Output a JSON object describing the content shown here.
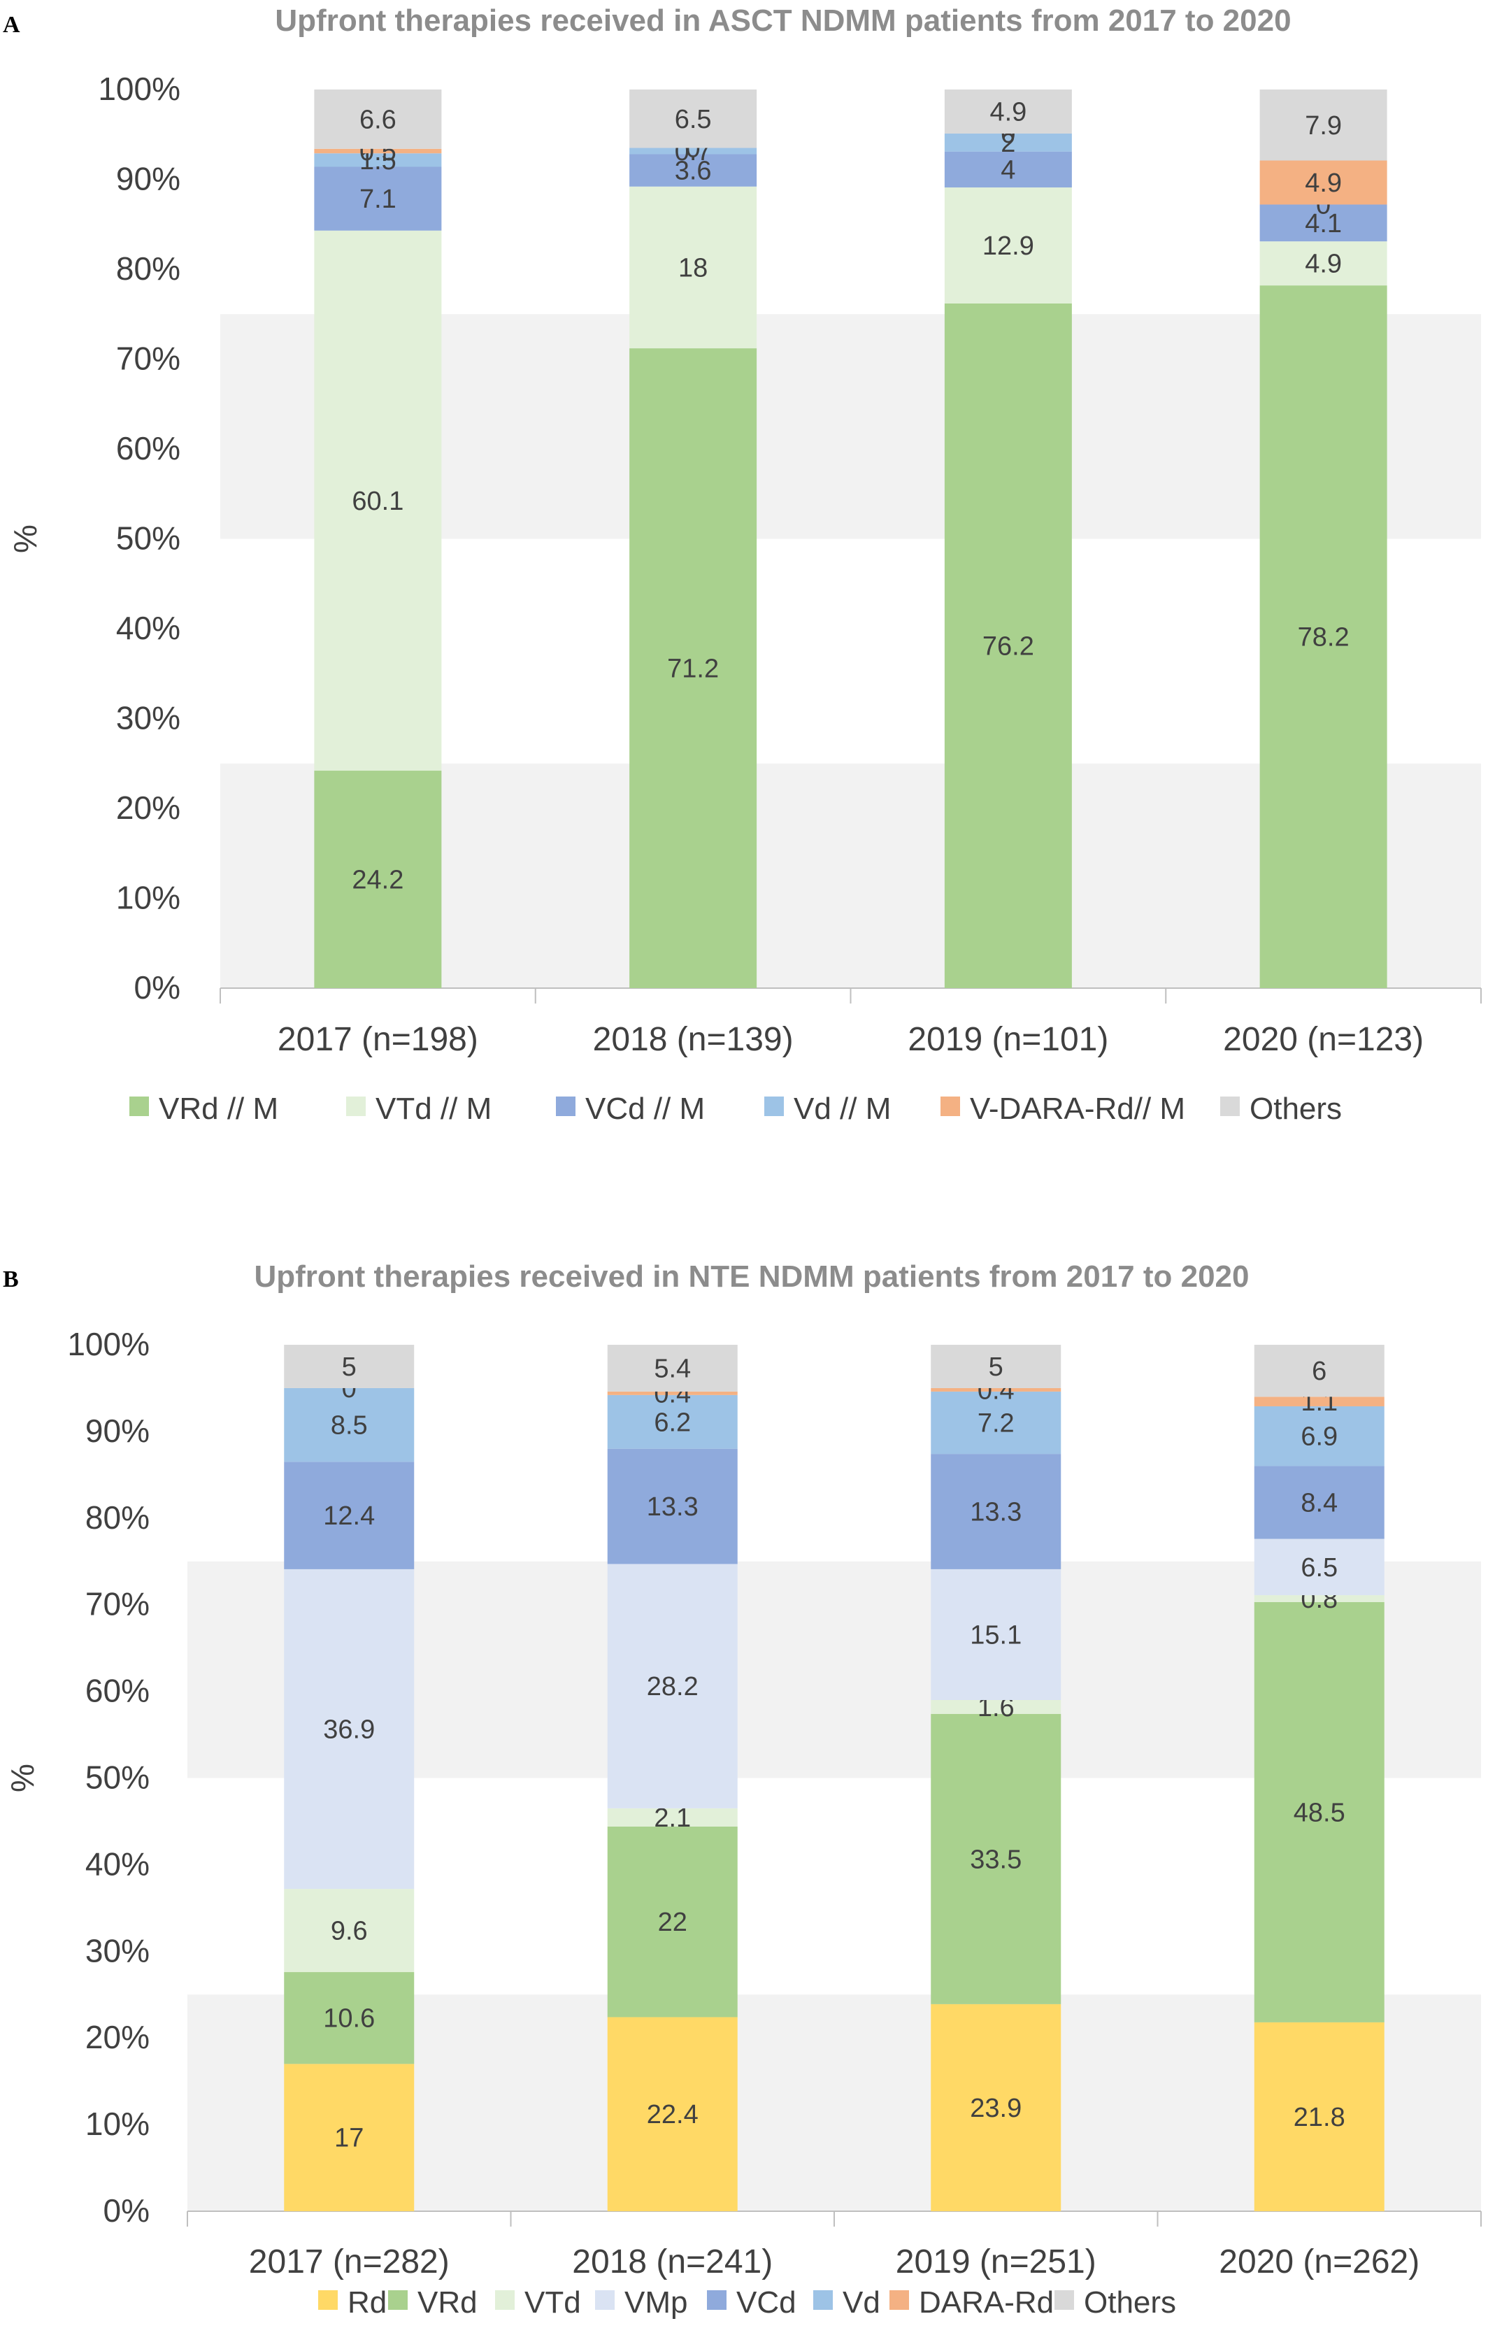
{
  "panel_labels": [
    "A",
    "B"
  ],
  "chart_data": [
    {
      "type": "bar",
      "stacked": true,
      "panel": "A",
      "title": "Upfront therapies received in ASCT NDMM patients from 2017 to 2020",
      "ylabel": "%",
      "ylim": [
        0,
        100
      ],
      "yticks": [
        "0%",
        "10%",
        "20%",
        "30%",
        "40%",
        "50%",
        "60%",
        "70%",
        "80%",
        "90%",
        "100%"
      ],
      "grid": false,
      "legend_position": "bottom",
      "categories": [
        "2017 (n=198)",
        "2018 (n=139)",
        "2019 (n=101)",
        "2020 (n=123)"
      ],
      "series": [
        {
          "name": "VRd // M",
          "color": "#a9d18e",
          "values": [
            24.2,
            71.2,
            76.2,
            78.2
          ]
        },
        {
          "name": "VTd // M",
          "color": "#e2f0d9",
          "values": [
            60.1,
            18,
            12.9,
            4.9
          ]
        },
        {
          "name": "VCd // M",
          "color": "#8faadc",
          "values": [
            7.1,
            3.6,
            4,
            4.1
          ]
        },
        {
          "name": "Vd // M",
          "color": "#9dc3e6",
          "values": [
            1.5,
            0.7,
            2,
            0
          ]
        },
        {
          "name": "V-DARA-Rd// M",
          "color": "#f4b183",
          "values": [
            0.5,
            0,
            0,
            4.9
          ]
        },
        {
          "name": "Others",
          "color": "#d9d9d9",
          "values": [
            6.6,
            6.5,
            4.9,
            7.9
          ]
        }
      ]
    },
    {
      "type": "bar",
      "stacked": true,
      "panel": "B",
      "title": "Upfront therapies received in NTE NDMM patients from 2017 to 2020",
      "ylabel": "%",
      "ylim": [
        0,
        100
      ],
      "yticks": [
        "0%",
        "10%",
        "20%",
        "30%",
        "40%",
        "50%",
        "60%",
        "70%",
        "80%",
        "90%",
        "100%"
      ],
      "grid": false,
      "legend_position": "bottom",
      "categories": [
        "2017 (n=282)",
        "2018 (n=241)",
        "2019 (n=251)",
        "2020 (n=262)"
      ],
      "series": [
        {
          "name": "Rd",
          "color": "#ffd966",
          "values": [
            17,
            22.4,
            23.9,
            21.8
          ]
        },
        {
          "name": "VRd",
          "color": "#a9d18e",
          "values": [
            10.6,
            22,
            33.5,
            48.5
          ]
        },
        {
          "name": "VTd",
          "color": "#e2f0d9",
          "values": [
            9.6,
            2.1,
            1.6,
            0.8
          ]
        },
        {
          "name": "VMp",
          "color": "#dae3f3",
          "values": [
            36.9,
            28.2,
            15.1,
            6.5
          ]
        },
        {
          "name": "VCd",
          "color": "#8faadc",
          "values": [
            12.4,
            13.3,
            13.3,
            8.4
          ]
        },
        {
          "name": "Vd",
          "color": "#9dc3e6",
          "values": [
            8.5,
            6.2,
            7.2,
            6.9
          ]
        },
        {
          "name": "DARA-Rd",
          "color": "#f4b183",
          "values": [
            0,
            0.4,
            0.4,
            1.1
          ]
        },
        {
          "name": "Others",
          "color": "#d9d9d9",
          "values": [
            5,
            5.4,
            5,
            6
          ]
        }
      ]
    }
  ]
}
